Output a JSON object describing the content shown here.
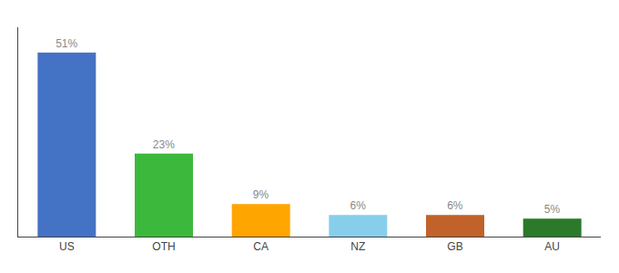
{
  "chart_data": {
    "type": "bar",
    "categories": [
      "US",
      "OTH",
      "CA",
      "NZ",
      "GB",
      "AU"
    ],
    "values": [
      51,
      23,
      9,
      6,
      6,
      5
    ],
    "value_labels": [
      "51%",
      "23%",
      "9%",
      "6%",
      "6%",
      "5%"
    ],
    "colors": [
      "#4472C4",
      "#3CB93C",
      "#FFA500",
      "#87CEEB",
      "#C0622A",
      "#2A7A2A"
    ],
    "ylim": [
      0,
      58
    ],
    "grid": false,
    "data_labels": true,
    "tick_labels": "x"
  }
}
